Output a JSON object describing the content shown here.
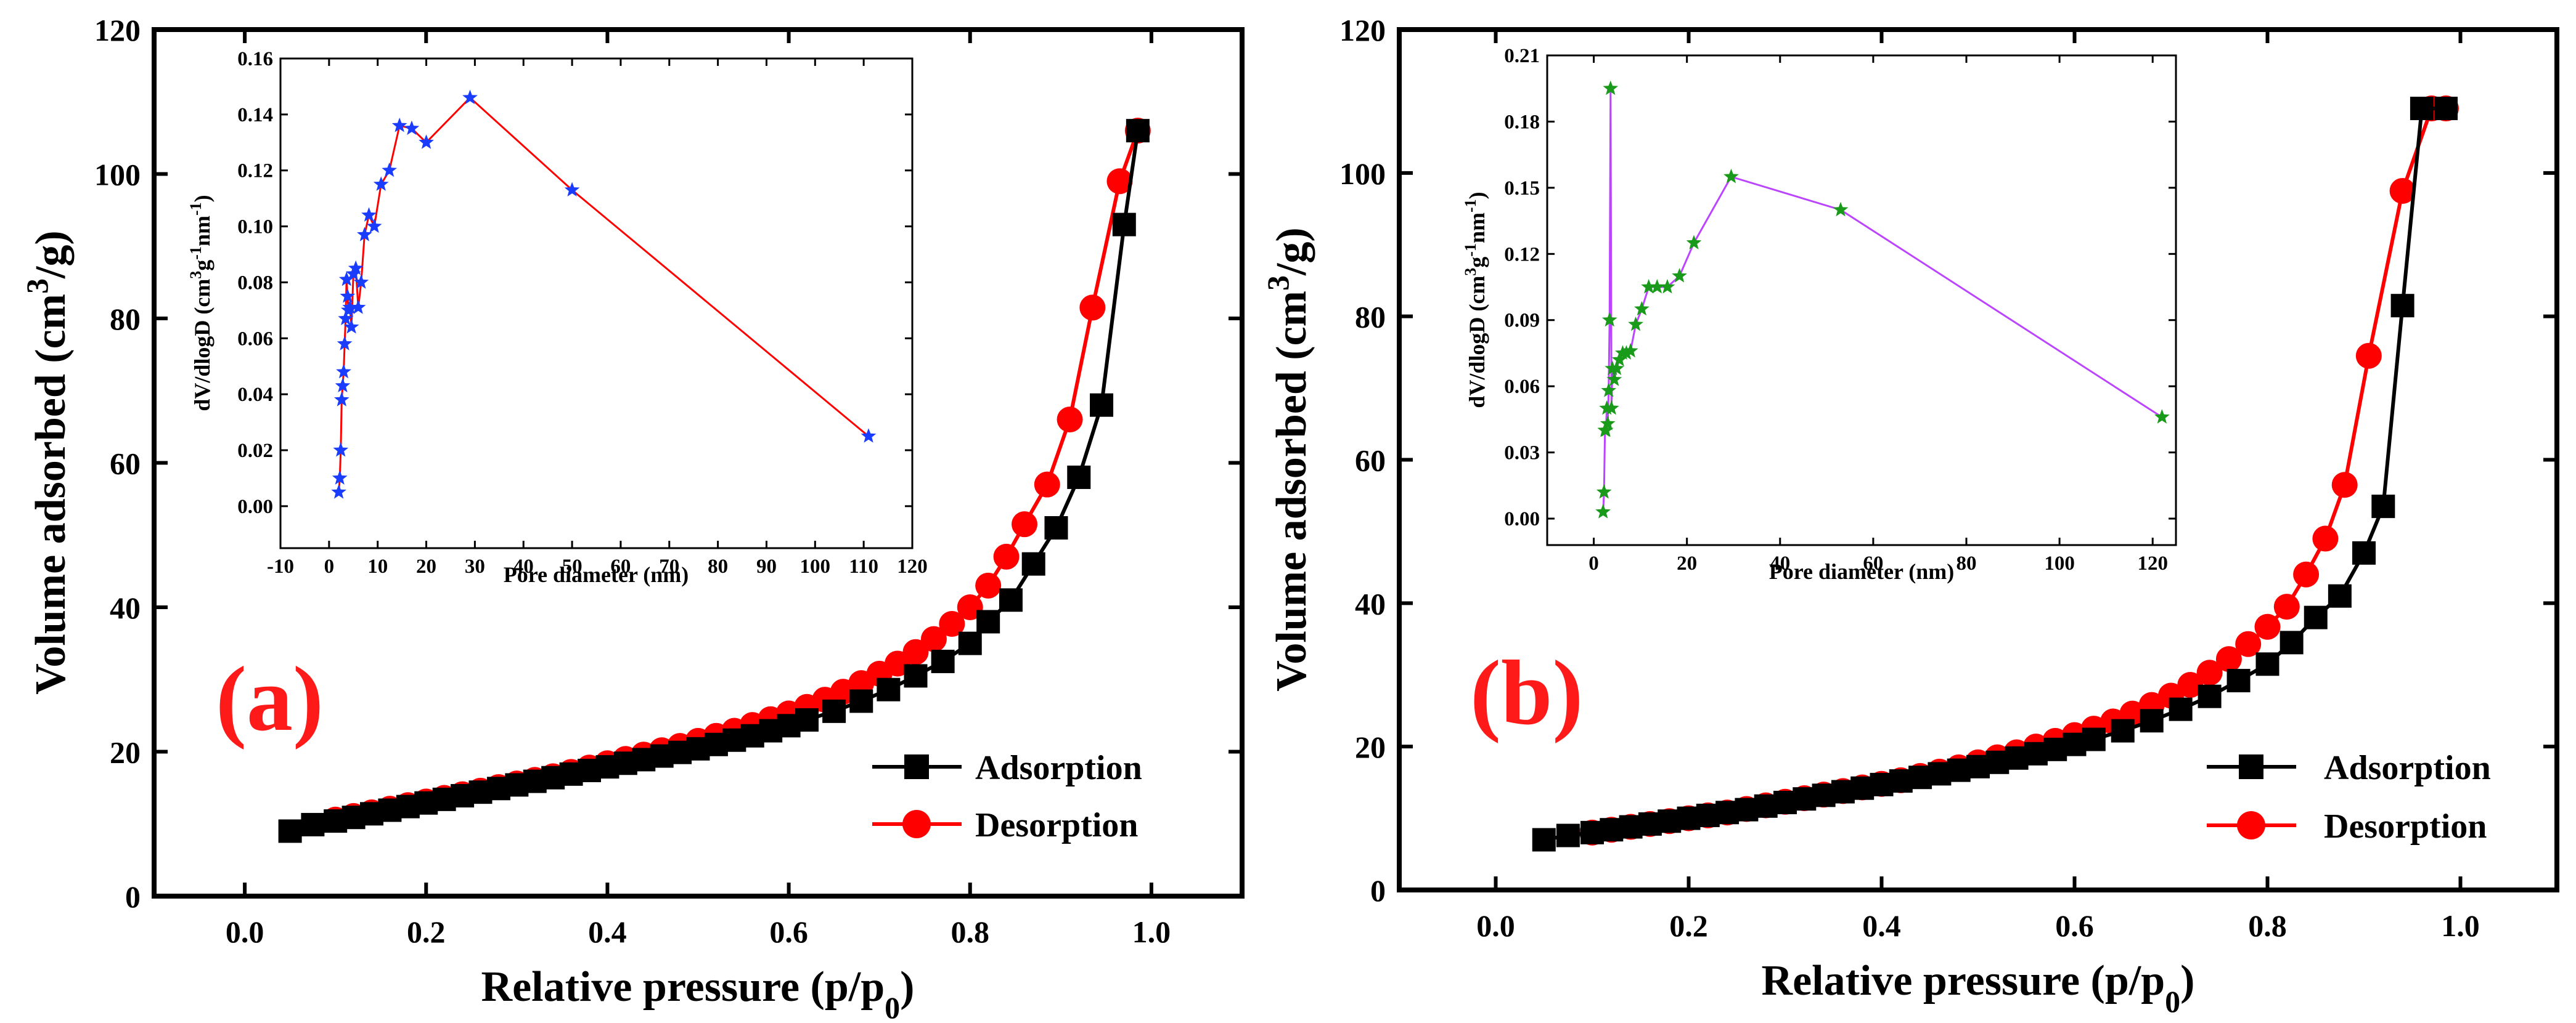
{
  "chart_data": [
    {
      "type": "line",
      "panel_label": "(a)",
      "xlabel_main": "Relative pressure (p/p",
      "xlabel_sub": "0",
      "xlabel_end": ")",
      "ylabel_main": "Volume adsorbed (cm",
      "ylabel_sup": "3",
      "ylabel_end": "/g)",
      "xlim": [
        -0.1,
        1.1
      ],
      "ylim": [
        0,
        120
      ],
      "xticks": [
        0.0,
        0.2,
        0.4,
        0.6,
        0.8,
        1.0
      ],
      "xtick_labels": [
        "0.0",
        "0.2",
        "0.4",
        "0.6",
        "0.8",
        "1.0"
      ],
      "yticks": [
        0,
        20,
        40,
        60,
        80,
        100,
        120
      ],
      "ytick_labels": [
        "0",
        "20",
        "40",
        "60",
        "80",
        "100",
        "120"
      ],
      "legend_position": "bottom-right",
      "series": [
        {
          "name": "Adsorption",
          "color": "#000000",
          "marker": "square",
          "x": [
            0.05,
            0.075,
            0.1,
            0.12,
            0.14,
            0.16,
            0.18,
            0.2,
            0.22,
            0.24,
            0.26,
            0.28,
            0.3,
            0.32,
            0.34,
            0.36,
            0.38,
            0.4,
            0.42,
            0.44,
            0.46,
            0.48,
            0.5,
            0.52,
            0.54,
            0.56,
            0.58,
            0.6,
            0.62,
            0.65,
            0.68,
            0.71,
            0.74,
            0.77,
            0.8,
            0.82,
            0.845,
            0.87,
            0.895,
            0.92,
            0.945,
            0.97,
            0.985
          ],
          "y": [
            9.0,
            9.9,
            10.4,
            10.9,
            11.4,
            11.9,
            12.4,
            12.9,
            13.4,
            13.9,
            14.4,
            14.9,
            15.4,
            15.9,
            16.4,
            16.9,
            17.4,
            17.9,
            18.4,
            18.9,
            19.4,
            19.9,
            20.4,
            21.0,
            21.6,
            22.2,
            22.9,
            23.6,
            24.4,
            25.6,
            27.0,
            28.6,
            30.5,
            32.5,
            35.0,
            38.0,
            41.0,
            46.0,
            51.0,
            58.0,
            68.0,
            93.0,
            106.0
          ]
        },
        {
          "name": "Desorption",
          "color": "#ff0000",
          "marker": "circle",
          "x": [
            0.1,
            0.12,
            0.14,
            0.16,
            0.18,
            0.2,
            0.22,
            0.24,
            0.26,
            0.28,
            0.3,
            0.32,
            0.34,
            0.36,
            0.38,
            0.4,
            0.42,
            0.44,
            0.46,
            0.48,
            0.5,
            0.52,
            0.54,
            0.56,
            0.58,
            0.6,
            0.62,
            0.64,
            0.66,
            0.68,
            0.7,
            0.72,
            0.74,
            0.76,
            0.78,
            0.8,
            0.82,
            0.84,
            0.86,
            0.885,
            0.91,
            0.935,
            0.965,
            0.985
          ],
          "y": [
            10.6,
            11.1,
            11.6,
            12.1,
            12.6,
            13.1,
            13.6,
            14.1,
            14.6,
            15.1,
            15.6,
            16.1,
            16.6,
            17.2,
            17.8,
            18.4,
            19.0,
            19.6,
            20.2,
            20.8,
            21.5,
            22.2,
            22.9,
            23.7,
            24.5,
            25.3,
            26.2,
            27.2,
            28.3,
            29.5,
            30.8,
            32.2,
            33.8,
            35.6,
            37.7,
            40.0,
            43.0,
            47.0,
            51.5,
            57.0,
            66.0,
            81.5,
            99.0,
            106.0
          ]
        }
      ],
      "inset": {
        "type": "line",
        "xlabel": "Pore diameter (nm)",
        "ylabel_main": "dV/dlogD (cm",
        "ylabel_sup1": "3",
        "ylabel_mid": "g",
        "ylabel_sup2": "-1",
        "ylabel_mid2": "nm",
        "ylabel_sup3": "-1",
        "ylabel_end": ")",
        "xlim": [
          -10,
          120
        ],
        "ylim": [
          -0.015,
          0.16
        ],
        "xticks": [
          -10,
          0,
          10,
          20,
          30,
          40,
          50,
          60,
          70,
          80,
          90,
          100,
          110,
          120
        ],
        "xtick_labels": [
          "-10",
          "0",
          "10",
          "20",
          "30",
          "40",
          "50",
          "60",
          "70",
          "80",
          "90",
          "100",
          "110",
          "120"
        ],
        "yticks": [
          0.0,
          0.02,
          0.04,
          0.06,
          0.08,
          0.1,
          0.12,
          0.14,
          0.16
        ],
        "ytick_labels": [
          "0.00",
          "0.02",
          "0.04",
          "0.06",
          "0.08",
          "0.10",
          "0.12",
          "0.14",
          "0.16"
        ],
        "line_color": "#ff0000",
        "marker_color": "#1a3cff",
        "marker": "star",
        "x": [
          2.0,
          2.2,
          2.4,
          2.6,
          2.8,
          3.0,
          3.2,
          3.4,
          3.6,
          3.8,
          4.0,
          4.3,
          4.6,
          5.0,
          5.5,
          6.0,
          6.6,
          7.3,
          8.2,
          9.3,
          10.7,
          12.4,
          14.5,
          17.0,
          20.0,
          29.0,
          50.0,
          111.0
        ],
        "y": [
          0.005,
          0.01,
          0.02,
          0.038,
          0.043,
          0.048,
          0.058,
          0.067,
          0.081,
          0.075,
          0.07,
          0.071,
          0.064,
          0.083,
          0.085,
          0.071,
          0.08,
          0.097,
          0.104,
          0.1,
          0.115,
          0.12,
          0.136,
          0.135,
          0.13,
          0.146,
          0.113,
          0.025
        ]
      }
    },
    {
      "type": "line",
      "panel_label": "(b)",
      "xlabel_main": "Relative pressure (p/p",
      "xlabel_sub": "0",
      "xlabel_end": ")",
      "ylabel_main": "Volume adsorbed (cm",
      "ylabel_sup": "3",
      "ylabel_end": "/g)",
      "xlim": [
        -0.1,
        1.1
      ],
      "ylim": [
        0,
        120
      ],
      "xticks": [
        0.0,
        0.2,
        0.4,
        0.6,
        0.8,
        1.0
      ],
      "xtick_labels": [
        "0.0",
        "0.2",
        "0.4",
        "0.6",
        "0.8",
        "1.0"
      ],
      "yticks": [
        0,
        20,
        40,
        60,
        80,
        100,
        120
      ],
      "ytick_labels": [
        "0",
        "20",
        "40",
        "60",
        "80",
        "100",
        "120"
      ],
      "legend_position": "bottom-right",
      "series": [
        {
          "name": "Adsorption",
          "color": "#000000",
          "marker": "square",
          "x": [
            0.05,
            0.075,
            0.1,
            0.12,
            0.14,
            0.16,
            0.18,
            0.2,
            0.22,
            0.24,
            0.26,
            0.28,
            0.3,
            0.32,
            0.34,
            0.36,
            0.38,
            0.4,
            0.42,
            0.44,
            0.46,
            0.48,
            0.5,
            0.52,
            0.54,
            0.56,
            0.58,
            0.6,
            0.62,
            0.65,
            0.68,
            0.71,
            0.74,
            0.77,
            0.8,
            0.825,
            0.85,
            0.875,
            0.9,
            0.92,
            0.94,
            0.96,
            0.985
          ],
          "y": [
            7.0,
            7.6,
            8.0,
            8.4,
            8.8,
            9.2,
            9.6,
            10.0,
            10.4,
            10.8,
            11.2,
            11.7,
            12.2,
            12.7,
            13.2,
            13.7,
            14.2,
            14.7,
            15.2,
            15.7,
            16.2,
            16.7,
            17.2,
            17.8,
            18.4,
            19.0,
            19.6,
            20.3,
            21.0,
            22.2,
            23.6,
            25.2,
            27.0,
            29.2,
            31.5,
            34.5,
            38.0,
            41.0,
            47.0,
            53.5,
            81.5,
            109.0,
            109.0
          ]
        },
        {
          "name": "Desorption",
          "color": "#ff0000",
          "marker": "circle",
          "x": [
            0.1,
            0.12,
            0.14,
            0.16,
            0.18,
            0.2,
            0.22,
            0.24,
            0.26,
            0.28,
            0.3,
            0.32,
            0.34,
            0.36,
            0.38,
            0.4,
            0.42,
            0.44,
            0.46,
            0.48,
            0.5,
            0.52,
            0.54,
            0.56,
            0.58,
            0.6,
            0.62,
            0.64,
            0.66,
            0.68,
            0.7,
            0.72,
            0.74,
            0.76,
            0.78,
            0.8,
            0.82,
            0.84,
            0.86,
            0.88,
            0.905,
            0.94,
            0.97,
            0.985
          ],
          "y": [
            8.0,
            8.4,
            8.8,
            9.2,
            9.6,
            10.0,
            10.4,
            10.8,
            11.3,
            11.8,
            12.3,
            12.8,
            13.3,
            13.8,
            14.3,
            14.8,
            15.3,
            15.9,
            16.5,
            17.1,
            17.8,
            18.5,
            19.2,
            20.0,
            20.8,
            21.6,
            22.5,
            23.5,
            24.6,
            25.8,
            27.1,
            28.6,
            30.3,
            32.2,
            34.3,
            36.7,
            39.5,
            44.0,
            49.0,
            56.5,
            74.5,
            97.5,
            109.0,
            109.0
          ]
        }
      ],
      "inset": {
        "type": "line",
        "xlabel": "Pore diameter (nm)",
        "ylabel_main": "dV/dlogD (cm",
        "ylabel_sup1": "3",
        "ylabel_mid": "g",
        "ylabel_sup2": "-1",
        "ylabel_mid2": "nm",
        "ylabel_sup3": "-1",
        "ylabel_end": ")",
        "xlim": [
          -10,
          125
        ],
        "ylim": [
          -0.012,
          0.21
        ],
        "xticks": [
          0,
          20,
          40,
          60,
          80,
          100,
          120
        ],
        "xtick_labels": [
          "0",
          "20",
          "40",
          "60",
          "80",
          "100",
          "120"
        ],
        "yticks": [
          0.0,
          0.03,
          0.06,
          0.09,
          0.12,
          0.15,
          0.18,
          0.21
        ],
        "ytick_labels": [
          "0.00",
          "0.03",
          "0.06",
          "0.09",
          "0.12",
          "0.15",
          "0.18",
          "0.21"
        ],
        "line_color": "#bb44ff",
        "marker_color": "#1a9a1a",
        "marker": "star",
        "x": [
          2.0,
          2.2,
          2.4,
          2.6,
          2.8,
          3.0,
          3.2,
          3.4,
          3.6,
          3.8,
          4.0,
          4.4,
          4.9,
          5.5,
          6.2,
          7.0,
          7.9,
          9.0,
          10.3,
          11.8,
          13.6,
          15.8,
          18.4,
          21.5,
          29.5,
          53.0,
          122.0
        ],
        "y": [
          0.003,
          0.012,
          0.04,
          0.04,
          0.05,
          0.043,
          0.058,
          0.09,
          0.195,
          0.05,
          0.068,
          0.063,
          0.068,
          0.072,
          0.075,
          0.075,
          0.076,
          0.088,
          0.095,
          0.105,
          0.105,
          0.105,
          0.11,
          0.125,
          0.155,
          0.14,
          0.046
        ]
      }
    }
  ]
}
